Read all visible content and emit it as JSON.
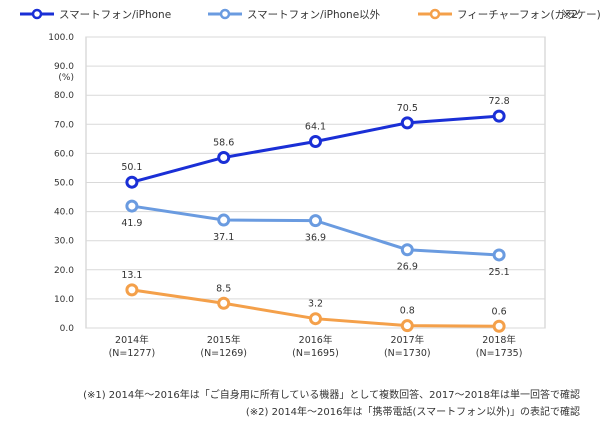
{
  "chart_data": {
    "type": "line",
    "categories": [
      [
        "2014年",
        "(N=1277)"
      ],
      [
        "2015年",
        "(N=1269)"
      ],
      [
        "2016年",
        "(N=1695)"
      ],
      [
        "2017年",
        "(N=1730)"
      ],
      [
        "2018年",
        "(N=1735)"
      ]
    ],
    "ylim": [
      0,
      100
    ],
    "y_ticks": [
      "0.0",
      "10.0",
      "20.0",
      "30.0",
      "40.0",
      "50.0",
      "60.0",
      "70.0",
      "80.0",
      "90.0",
      "100.0"
    ],
    "y_unit": "(%)",
    "legend_position": "top",
    "legend_suffix": "※2",
    "series": [
      {
        "name": "スマートフォン/iPhone",
        "color": "#1a2fd6",
        "values": [
          50.1,
          58.6,
          64.1,
          70.5,
          72.8
        ],
        "labels": [
          "50.1",
          "58.6",
          "64.1",
          "70.5",
          "72.8"
        ],
        "label_position": "above"
      },
      {
        "name": "スマートフォン/iPhone以外",
        "color": "#6a9be0",
        "values": [
          41.9,
          37.1,
          36.9,
          26.9,
          25.1
        ],
        "labels": [
          "41.9",
          "37.1",
          "36.9",
          "26.9",
          "25.1"
        ],
        "label_position": "below"
      },
      {
        "name": "フィーチャーフォン(ガラケー)",
        "color": "#f4a04a",
        "values": [
          13.1,
          8.5,
          3.2,
          0.8,
          0.6
        ],
        "labels": [
          "13.1",
          "8.5",
          "3.2",
          "0.8",
          "0.6"
        ],
        "label_position": "above"
      }
    ]
  },
  "notes": {
    "note1": "(※1) 2014年～2016年は「ご自身用に所有している機器」として複数回答、2017～2018年は単一回答で確認",
    "note2": "(※2) 2014年～2016年は「携帯電話(スマートフォン以外)」の表記で確認"
  }
}
